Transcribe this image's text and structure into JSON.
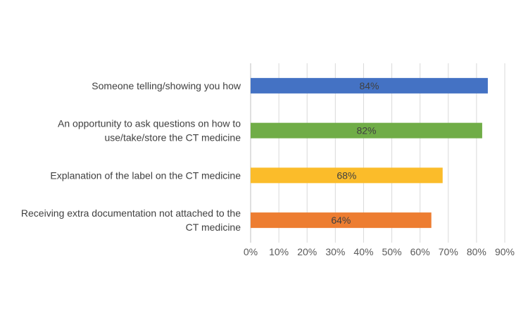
{
  "chart_data": {
    "type": "bar",
    "orientation": "horizontal",
    "categories": [
      [
        "Someone telling/showing you how"
      ],
      [
        "An opportunity to ask questions on how to",
        "use/take/store the CT medicine"
      ],
      [
        "Explanation of the label on the CT medicine"
      ],
      [
        "Receiving extra documentation not attached to the",
        "CT medicine"
      ]
    ],
    "values": [
      84,
      82,
      68,
      64
    ],
    "data_labels": [
      "84%",
      "82%",
      "68%",
      "64%"
    ],
    "bar_colors": [
      "#4472C4",
      "#70AD47",
      "#FBBC2A",
      "#ED7D31"
    ],
    "xlim": [
      0,
      90
    ],
    "x_ticks": [
      0,
      10,
      20,
      30,
      40,
      50,
      60,
      70,
      80,
      90
    ],
    "x_tick_labels": [
      "0%",
      "10%",
      "20%",
      "30%",
      "40%",
      "50%",
      "60%",
      "70%",
      "80%",
      "90%"
    ],
    "grid": true,
    "legend": "none"
  }
}
